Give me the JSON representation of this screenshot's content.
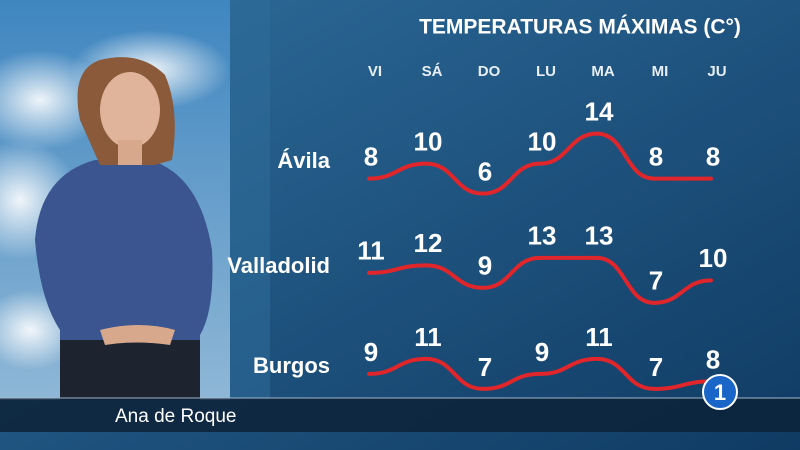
{
  "chart_data": {
    "type": "line",
    "title": "TEMPERATURAS MÁXIMAS (C°)",
    "categories": [
      "VI",
      "SÁ",
      "DO",
      "LU",
      "MA",
      "MI",
      "JU"
    ],
    "series": [
      {
        "name": "Ávila",
        "color": "#e0262b",
        "values": [
          8,
          10,
          6,
          10,
          14,
          8,
          8
        ]
      },
      {
        "name": "Valladolid",
        "color": "#e0262b",
        "values": [
          11,
          12,
          9,
          13,
          13,
          7,
          10
        ]
      },
      {
        "name": "Burgos",
        "color": "#e0262b",
        "values": [
          9,
          11,
          7,
          9,
          11,
          7,
          8
        ]
      }
    ]
  },
  "caption": "Ana de Roque",
  "logo": "1"
}
